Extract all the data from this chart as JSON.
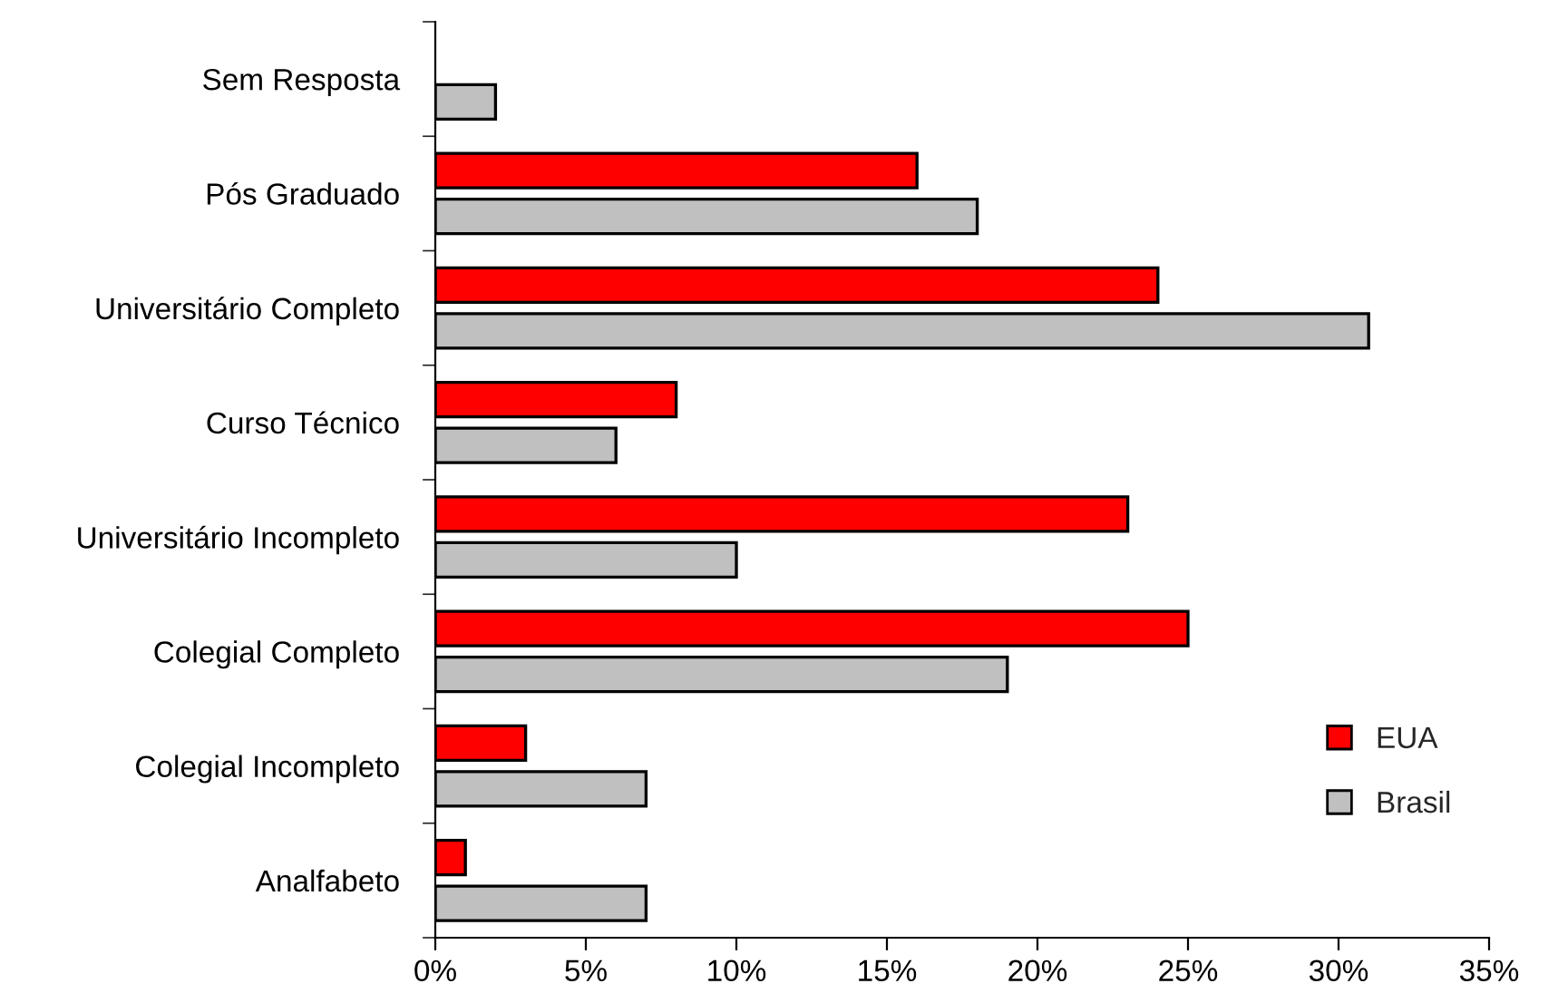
{
  "chart_data": {
    "type": "bar",
    "orientation": "horizontal",
    "categories": [
      "Sem Resposta",
      "Pós Graduado",
      "Universitário Completo",
      "Curso Técnico",
      "Universitário Incompleto",
      "Colegial Completo",
      "Colegial Incompleto",
      "Analfabeto"
    ],
    "series": [
      {
        "name": "EUA",
        "color": "#ff0000",
        "values": [
          null,
          16,
          24,
          8,
          23,
          25,
          3,
          1
        ]
      },
      {
        "name": "Brasil",
        "color": "#c0c0c0",
        "values": [
          2,
          18,
          31,
          6,
          10,
          19,
          7,
          7
        ]
      }
    ],
    "xlim": [
      0,
      35
    ],
    "xticks": [
      {
        "value": 0,
        "label": "0%"
      },
      {
        "value": 5,
        "label": "5%"
      },
      {
        "value": 10,
        "label": "10%"
      },
      {
        "value": 15,
        "label": "15%"
      },
      {
        "value": 20,
        "label": "20%"
      },
      {
        "value": 25,
        "label": "25%"
      },
      {
        "value": 30,
        "label": "30%"
      },
      {
        "value": 35,
        "label": "35%"
      }
    ],
    "grid": false,
    "legend": "bottom right"
  }
}
